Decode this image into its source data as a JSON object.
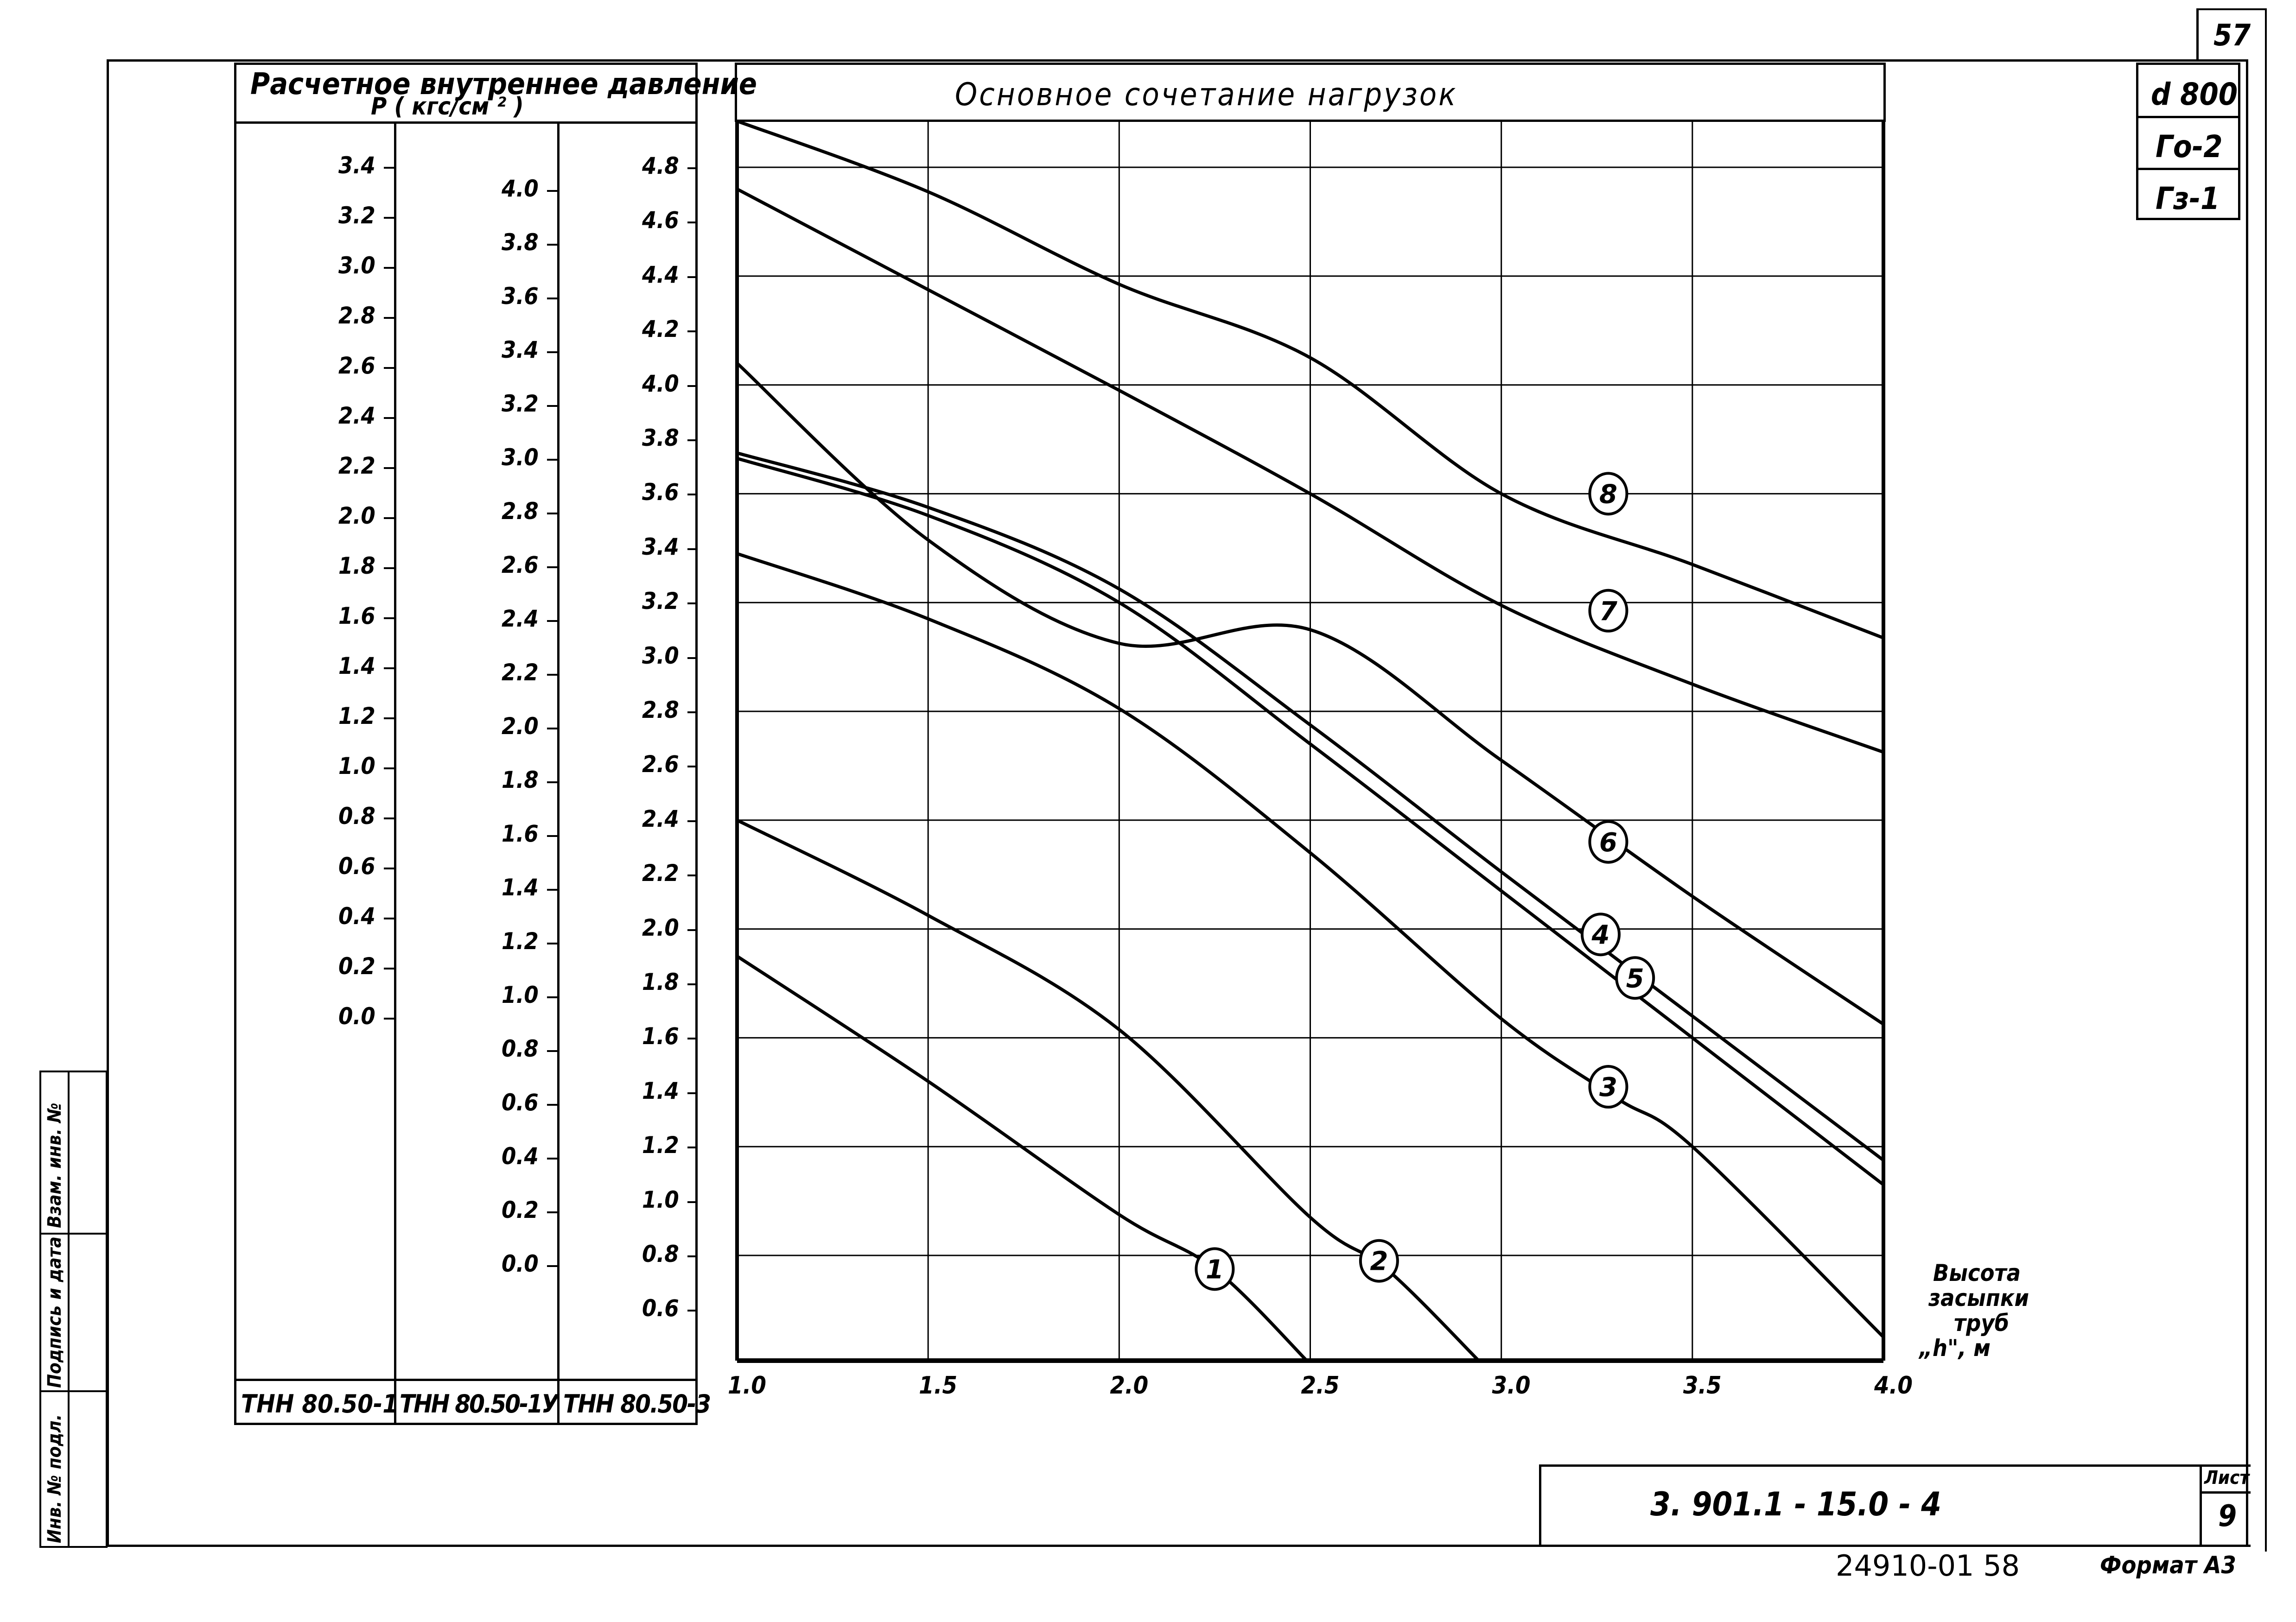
{
  "sheet": {
    "page_number": "57",
    "designation": "3. 901.1 - 15.0 - 4",
    "sheet_label": "Лист",
    "sheet_number": "9",
    "archive_number": "24910-01 58",
    "format": "Формат А3",
    "side_stamp": {
      "field_1": "Взам. инв. №",
      "field_2": "Подпись и дата",
      "field_3": "Инв. № подл."
    },
    "parameters": [
      "d 800",
      "Го-2",
      "Гз-1"
    ]
  },
  "left_table": {
    "title_line_1": "Расчетное внутреннее давление",
    "title_line_2": "P ( кгс/см ² )",
    "columns": [
      {
        "name": "ТНН 80.50-1",
        "ticks": [
          "3.4",
          "3.2",
          "3.0",
          "2.8",
          "2.6",
          "2.4",
          "2.2",
          "2.0",
          "1.8",
          "1.6",
          "1.4",
          "1.2",
          "1.0",
          "0.8",
          "0.6",
          "0.4",
          "0.2",
          "0.0"
        ]
      },
      {
        "name": "ТНН 80.50-1У",
        "ticks": [
          "4.0",
          "3.8",
          "3.6",
          "3.4",
          "3.2",
          "3.0",
          "2.8",
          "2.6",
          "2.4",
          "2.2",
          "2.0",
          "1.8",
          "1.6",
          "1.4",
          "1.2",
          "1.0",
          "0.8",
          "0.6",
          "0.4",
          "0.2",
          "0.0"
        ]
      },
      {
        "name": "ТНН 80.50-3",
        "ticks": [
          "4.8",
          "4.6",
          "4.4",
          "4.2",
          "4.0",
          "3.8",
          "3.6",
          "3.4",
          "3.2",
          "3.0",
          "2.8",
          "2.6",
          "2.4",
          "2.2",
          "2.0",
          "1.8",
          "1.6",
          "1.4",
          "1.2",
          "1.0",
          "0.8",
          "0.6"
        ]
      }
    ]
  },
  "chart_data": {
    "type": "line",
    "title": "Основное сочетание нагрузок",
    "xlabel": "Высота засыпки труб \"h\", м",
    "ylabel": "Расчетное внутреннее давление P (кгс/см²)",
    "x_ticks": [
      "1.0",
      "1.5",
      "2.0",
      "2.5",
      "3.0",
      "3.5",
      "4.0"
    ],
    "xlim": [
      1.0,
      4.0
    ],
    "ylim_reference_axis": "ТНН 80.50-3",
    "ylim": [
      0.4,
      4.97
    ],
    "grid": true,
    "series": [
      {
        "name": "1",
        "x": [
          1.0,
          1.5,
          2.0,
          2.25,
          2.5
        ],
        "values": [
          1.9,
          1.44,
          0.95,
          0.75,
          0.4
        ]
      },
      {
        "name": "2",
        "x": [
          1.0,
          1.5,
          2.0,
          2.5,
          2.7,
          2.95
        ],
        "values": [
          2.4,
          2.05,
          1.63,
          0.94,
          0.75,
          0.4
        ]
      },
      {
        "name": "3",
        "x": [
          1.0,
          1.5,
          2.0,
          2.5,
          3.0,
          3.3,
          3.5,
          4.0
        ],
        "values": [
          3.38,
          3.14,
          2.81,
          2.28,
          1.67,
          1.38,
          1.2,
          0.5
        ]
      },
      {
        "name": "4",
        "x": [
          1.0,
          1.5,
          2.0,
          2.5,
          3.0,
          3.5,
          4.0
        ],
        "values": [
          3.75,
          3.55,
          3.25,
          2.75,
          2.21,
          1.68,
          1.15
        ]
      },
      {
        "name": "5",
        "x": [
          1.0,
          1.5,
          2.0,
          2.5,
          3.0,
          3.5,
          4.0
        ],
        "values": [
          3.73,
          3.52,
          3.2,
          2.68,
          2.14,
          1.6,
          1.06
        ]
      },
      {
        "name": "6",
        "x": [
          1.0,
          1.5,
          2.0,
          2.5,
          3.0,
          3.5,
          4.0
        ],
        "values": [
          4.08,
          3.43,
          3.05,
          3.1,
          2.62,
          2.12,
          1.65
        ]
      },
      {
        "name": "7",
        "x": [
          1.0,
          1.5,
          2.0,
          2.5,
          3.0,
          3.5,
          4.0
        ],
        "values": [
          4.72,
          4.35,
          3.98,
          3.6,
          3.19,
          2.9,
          2.65
        ]
      },
      {
        "name": "8",
        "x": [
          1.0,
          1.5,
          2.0,
          2.5,
          3.0,
          3.5,
          4.0
        ],
        "values": [
          4.97,
          4.71,
          4.37,
          4.1,
          3.6,
          3.34,
          3.07
        ]
      }
    ],
    "curve_labels": [
      "1",
      "2",
      "3",
      "4",
      "5",
      "6",
      "7",
      "8"
    ]
  },
  "axis_label": {
    "line_1": "Высота",
    "line_2": "засыпки",
    "line_3": "труб",
    "line_4": "„h\", м"
  }
}
